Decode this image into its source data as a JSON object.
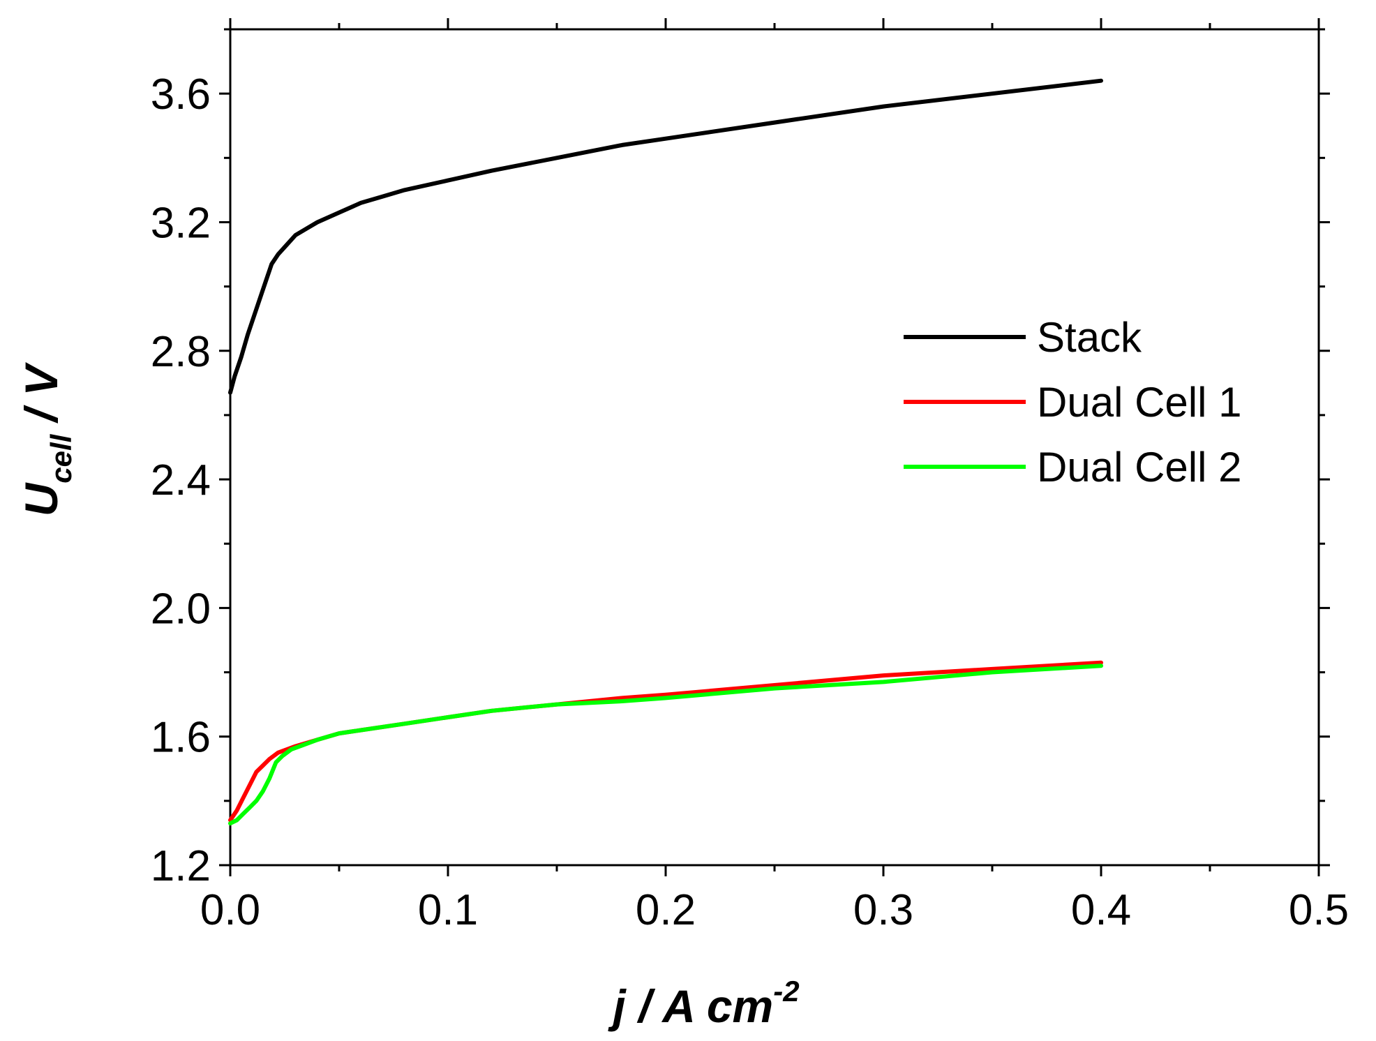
{
  "chart_data": {
    "type": "line",
    "title": "",
    "xlabel": {
      "main": "j / A cm",
      "sup": "-2"
    },
    "ylabel": {
      "main": "U",
      "sub": "cell",
      "rest": " / V"
    },
    "xlim": [
      0.0,
      0.5
    ],
    "ylim": [
      1.2,
      3.8
    ],
    "x_ticks": [
      "0.0",
      "0.1",
      "0.2",
      "0.3",
      "0.4",
      "0.5"
    ],
    "x_tick_values": [
      0.0,
      0.1,
      0.2,
      0.3,
      0.4,
      0.5
    ],
    "y_ticks": [
      "1.2",
      "1.6",
      "2.0",
      "2.4",
      "2.8",
      "3.2",
      "3.6"
    ],
    "y_tick_values": [
      1.2,
      1.6,
      2.0,
      2.4,
      2.8,
      3.2,
      3.6
    ],
    "grid": false,
    "legend_position": "center-right",
    "series": [
      {
        "name": "Stack",
        "color": "#000000",
        "x": [
          0.0,
          0.002,
          0.005,
          0.008,
          0.012,
          0.016,
          0.019,
          0.022,
          0.026,
          0.03,
          0.035,
          0.04,
          0.05,
          0.06,
          0.07,
          0.08,
          0.1,
          0.12,
          0.15,
          0.18,
          0.2,
          0.25,
          0.3,
          0.35,
          0.4
        ],
        "y": [
          2.67,
          2.72,
          2.78,
          2.85,
          2.93,
          3.01,
          3.07,
          3.1,
          3.13,
          3.16,
          3.18,
          3.2,
          3.23,
          3.26,
          3.28,
          3.3,
          3.33,
          3.36,
          3.4,
          3.44,
          3.46,
          3.51,
          3.56,
          3.6,
          3.64
        ]
      },
      {
        "name": "Dual Cell 1",
        "color": "#ff0000",
        "x": [
          0.0,
          0.003,
          0.006,
          0.009,
          0.012,
          0.015,
          0.018,
          0.022,
          0.026,
          0.03,
          0.04,
          0.05,
          0.06,
          0.08,
          0.1,
          0.12,
          0.15,
          0.18,
          0.2,
          0.25,
          0.3,
          0.35,
          0.4
        ],
        "y": [
          1.34,
          1.37,
          1.41,
          1.45,
          1.49,
          1.51,
          1.53,
          1.55,
          1.56,
          1.57,
          1.59,
          1.61,
          1.62,
          1.64,
          1.66,
          1.68,
          1.7,
          1.72,
          1.73,
          1.76,
          1.79,
          1.81,
          1.83
        ]
      },
      {
        "name": "Dual Cell 2",
        "color": "#00ff00",
        "x": [
          0.0,
          0.003,
          0.006,
          0.009,
          0.012,
          0.015,
          0.018,
          0.021,
          0.024,
          0.028,
          0.032,
          0.04,
          0.05,
          0.06,
          0.08,
          0.1,
          0.12,
          0.15,
          0.18,
          0.2,
          0.25,
          0.3,
          0.35,
          0.4
        ],
        "y": [
          1.33,
          1.34,
          1.36,
          1.38,
          1.4,
          1.43,
          1.47,
          1.52,
          1.54,
          1.56,
          1.57,
          1.59,
          1.61,
          1.62,
          1.64,
          1.66,
          1.68,
          1.7,
          1.71,
          1.72,
          1.75,
          1.77,
          1.8,
          1.82
        ]
      }
    ]
  }
}
